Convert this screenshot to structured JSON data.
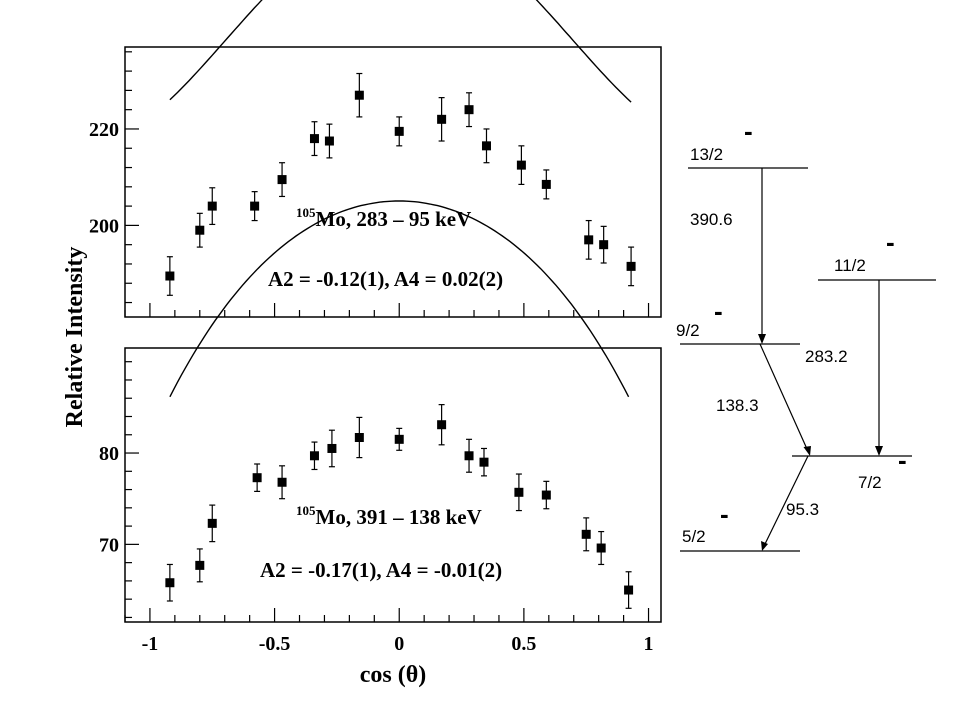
{
  "chart_data": [
    {
      "type": "scatter",
      "title": "",
      "xlabel": "cos (θ)",
      "ylabel": "Relative Intensity",
      "xlim": [
        -1.1,
        1.05
      ],
      "ylim": [
        181,
        237
      ],
      "yticks": [
        {
          "v": 200,
          "label": "200"
        },
        {
          "v": 220,
          "label": "220"
        }
      ],
      "annotation": {
        "isotope_mass": "105",
        "isotope_text": "Mo, 283 – 95 keV",
        "coeffs": "A2 = -0.12(1), A4 = 0.02(2)"
      },
      "points": [
        {
          "x": -0.92,
          "y": 189.5,
          "err": 4.0
        },
        {
          "x": -0.8,
          "y": 199.0,
          "err": 3.5
        },
        {
          "x": -0.75,
          "y": 204.0,
          "err": 3.8
        },
        {
          "x": -0.58,
          "y": 204.0,
          "err": 3.0
        },
        {
          "x": -0.47,
          "y": 209.5,
          "err": 3.5
        },
        {
          "x": -0.34,
          "y": 218.0,
          "err": 3.5
        },
        {
          "x": -0.28,
          "y": 217.5,
          "err": 3.5
        },
        {
          "x": -0.16,
          "y": 227.0,
          "err": 4.5
        },
        {
          "x": 0.0,
          "y": 219.5,
          "err": 3.0
        },
        {
          "x": 0.17,
          "y": 222.0,
          "err": 4.5
        },
        {
          "x": 0.28,
          "y": 224.0,
          "err": 3.5
        },
        {
          "x": 0.35,
          "y": 216.5,
          "err": 3.5
        },
        {
          "x": 0.49,
          "y": 212.5,
          "err": 4.0
        },
        {
          "x": 0.59,
          "y": 208.5,
          "err": 3.0
        },
        {
          "x": 0.76,
          "y": 197.0,
          "err": 4.0
        },
        {
          "x": 0.82,
          "y": 196.0,
          "err": 3.8
        },
        {
          "x": 0.93,
          "y": 191.5,
          "err": 4.0
        }
      ],
      "fit": {
        "a0": 222.5,
        "a2": -0.12,
        "a4": 0.02
      }
    },
    {
      "type": "scatter",
      "title": "",
      "xlabel": "cos (θ)",
      "ylabel": "Relative Intensity",
      "xlim": [
        -1.1,
        1.05
      ],
      "ylim": [
        61.5,
        91.5
      ],
      "xticks": [
        {
          "v": -1,
          "label": "-1"
        },
        {
          "v": -0.5,
          "label": "-0.5"
        },
        {
          "v": 0,
          "label": "0"
        },
        {
          "v": 0.5,
          "label": "0.5"
        },
        {
          "v": 1,
          "label": "1"
        }
      ],
      "yticks": [
        {
          "v": 70,
          "label": "70"
        },
        {
          "v": 80,
          "label": "80"
        }
      ],
      "annotation": {
        "isotope_mass": "105",
        "isotope_text": "Mo, 391 – 138 keV",
        "coeffs": "A2 = -0.17(1), A4 = -0.01(2)"
      },
      "points": [
        {
          "x": -0.92,
          "y": 65.8,
          "err": 2.0
        },
        {
          "x": -0.8,
          "y": 67.7,
          "err": 1.8
        },
        {
          "x": -0.75,
          "y": 72.3,
          "err": 2.0
        },
        {
          "x": -0.57,
          "y": 77.3,
          "err": 1.5
        },
        {
          "x": -0.47,
          "y": 76.8,
          "err": 1.8
        },
        {
          "x": -0.34,
          "y": 79.7,
          "err": 1.5
        },
        {
          "x": -0.27,
          "y": 80.5,
          "err": 2.0
        },
        {
          "x": -0.16,
          "y": 81.7,
          "err": 2.2
        },
        {
          "x": 0.0,
          "y": 81.5,
          "err": 1.2
        },
        {
          "x": 0.17,
          "y": 83.1,
          "err": 2.2
        },
        {
          "x": 0.28,
          "y": 79.7,
          "err": 1.8
        },
        {
          "x": 0.34,
          "y": 79.0,
          "err": 1.5
        },
        {
          "x": 0.48,
          "y": 75.7,
          "err": 2.0
        },
        {
          "x": 0.59,
          "y": 75.4,
          "err": 1.5
        },
        {
          "x": 0.75,
          "y": 71.1,
          "err": 1.8
        },
        {
          "x": 0.81,
          "y": 69.6,
          "err": 1.8
        },
        {
          "x": 0.92,
          "y": 65.0,
          "err": 2.0
        }
      ],
      "fit": {
        "a0": 81.6,
        "a2": -0.17,
        "a4": -0.01
      }
    }
  ],
  "level_scheme": {
    "levels": [
      {
        "spin": "13/2",
        "parity": "-"
      },
      {
        "spin": "11/2",
        "parity": "-"
      },
      {
        "spin": "9/2",
        "parity": "-"
      },
      {
        "spin": "7/2",
        "parity": "-"
      },
      {
        "spin": "5/2",
        "parity": "-"
      }
    ],
    "transitions": [
      {
        "energy": "390.6"
      },
      {
        "energy": "283.2"
      },
      {
        "energy": "138.3"
      },
      {
        "energy": "95.3"
      }
    ]
  }
}
